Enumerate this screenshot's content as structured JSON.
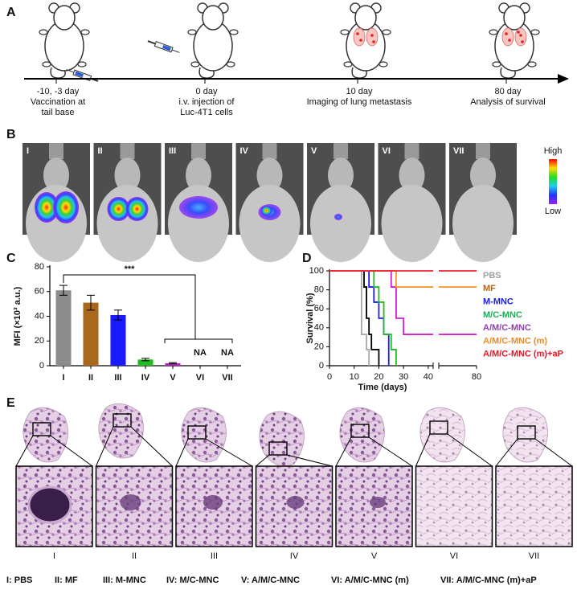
{
  "panel_labels": [
    "A",
    "B",
    "C",
    "D",
    "E"
  ],
  "timeline": {
    "events": [
      {
        "day": "-10, -3 day",
        "text": [
          "Vaccination at",
          "tail base"
        ]
      },
      {
        "day": "0 day",
        "text": [
          "i.v. injection of",
          "Luc-4T1 cells"
        ]
      },
      {
        "day": "10 day",
        "text": [
          "Imaging of lung metastasis"
        ]
      },
      {
        "day": "80 day",
        "text": [
          "Analysis of survival"
        ]
      }
    ]
  },
  "imaging": {
    "groups": [
      "I",
      "II",
      "III",
      "IV",
      "V",
      "VI",
      "VII"
    ],
    "colorbar": {
      "high": "High",
      "low": "Low"
    }
  },
  "chart_data": [
    {
      "type": "bar",
      "ylabel": "MFI (×10³ a.u.)",
      "categories": [
        "I",
        "II",
        "III",
        "IV",
        "V",
        "VI",
        "VII"
      ],
      "values": [
        61,
        51,
        41,
        5,
        2,
        null,
        null
      ],
      "errors": [
        4,
        6,
        4,
        1,
        0.5,
        null,
        null
      ],
      "value_labels": [
        null,
        null,
        null,
        null,
        null,
        "NA",
        "NA"
      ],
      "colors": [
        "#8c8c8c",
        "#a8681e",
        "#1a1aff",
        "#22bb22",
        "#c020c0",
        "#000000",
        "#000000"
      ],
      "ylim": [
        0,
        80
      ],
      "yticks": [
        0,
        20,
        40,
        60,
        80
      ],
      "annotation": "***"
    },
    {
      "type": "line",
      "step": true,
      "ylabel": "Survival (%)",
      "xlabel": "Time (days)",
      "xlim": [
        0,
        80
      ],
      "xbreak": [
        42,
        72
      ],
      "xticks": [
        0,
        10,
        20,
        30,
        40,
        80
      ],
      "ylim": [
        0,
        100
      ],
      "yticks": [
        0,
        20,
        40,
        60,
        80,
        100
      ],
      "series": [
        {
          "name": "PBS",
          "color": "#a8a8a8",
          "legend_color": "#a0a0a0",
          "x": [
            0,
            13,
            15,
            16
          ],
          "values": [
            100,
            33,
            17,
            0
          ]
        },
        {
          "name": "MF",
          "color": "#000000",
          "legend_color": "#b5651d",
          "x": [
            0,
            14,
            15,
            16,
            17,
            20
          ],
          "values": [
            100,
            83,
            50,
            33,
            17,
            0
          ]
        },
        {
          "name": "M-MNC",
          "color": "#1a1aff",
          "legend_color": "#1a1aff",
          "x": [
            0,
            16,
            18,
            20,
            22,
            24
          ],
          "values": [
            100,
            83,
            67,
            50,
            33,
            0
          ]
        },
        {
          "name": "M/C-MNC",
          "color": "#22bb22",
          "legend_color": "#1faa55",
          "x": [
            0,
            18,
            20,
            22,
            25,
            27
          ],
          "values": [
            100,
            83,
            67,
            33,
            17,
            0
          ]
        },
        {
          "name": "A/M/C-MNC",
          "color": "#d020d0",
          "legend_color": "#9040b0",
          "x": [
            0,
            25,
            27,
            30,
            80
          ],
          "values": [
            100,
            83,
            50,
            33,
            33
          ]
        },
        {
          "name": "A/M/C-MNC (m)",
          "color": "#f59a30",
          "legend_color": "#f08a20",
          "x": [
            0,
            27,
            80
          ],
          "values": [
            100,
            83,
            83
          ]
        },
        {
          "name": "A/M/C-MNC (m)+aP",
          "color": "#ee2233",
          "legend_color": "#ee1122",
          "x": [
            0,
            80
          ],
          "values": [
            100,
            100
          ]
        }
      ]
    }
  ],
  "histology": {
    "groups": [
      "I",
      "II",
      "III",
      "IV",
      "V",
      "VI",
      "VII"
    ],
    "legend": [
      "I: PBS",
      "II: MF",
      "III: M-MNC",
      "IV: M/C-MNC",
      "V: A/M/C-MNC",
      "VI: A/M/C-MNC (m)",
      "VII: A/M/C-MNC (m)+aP"
    ]
  }
}
